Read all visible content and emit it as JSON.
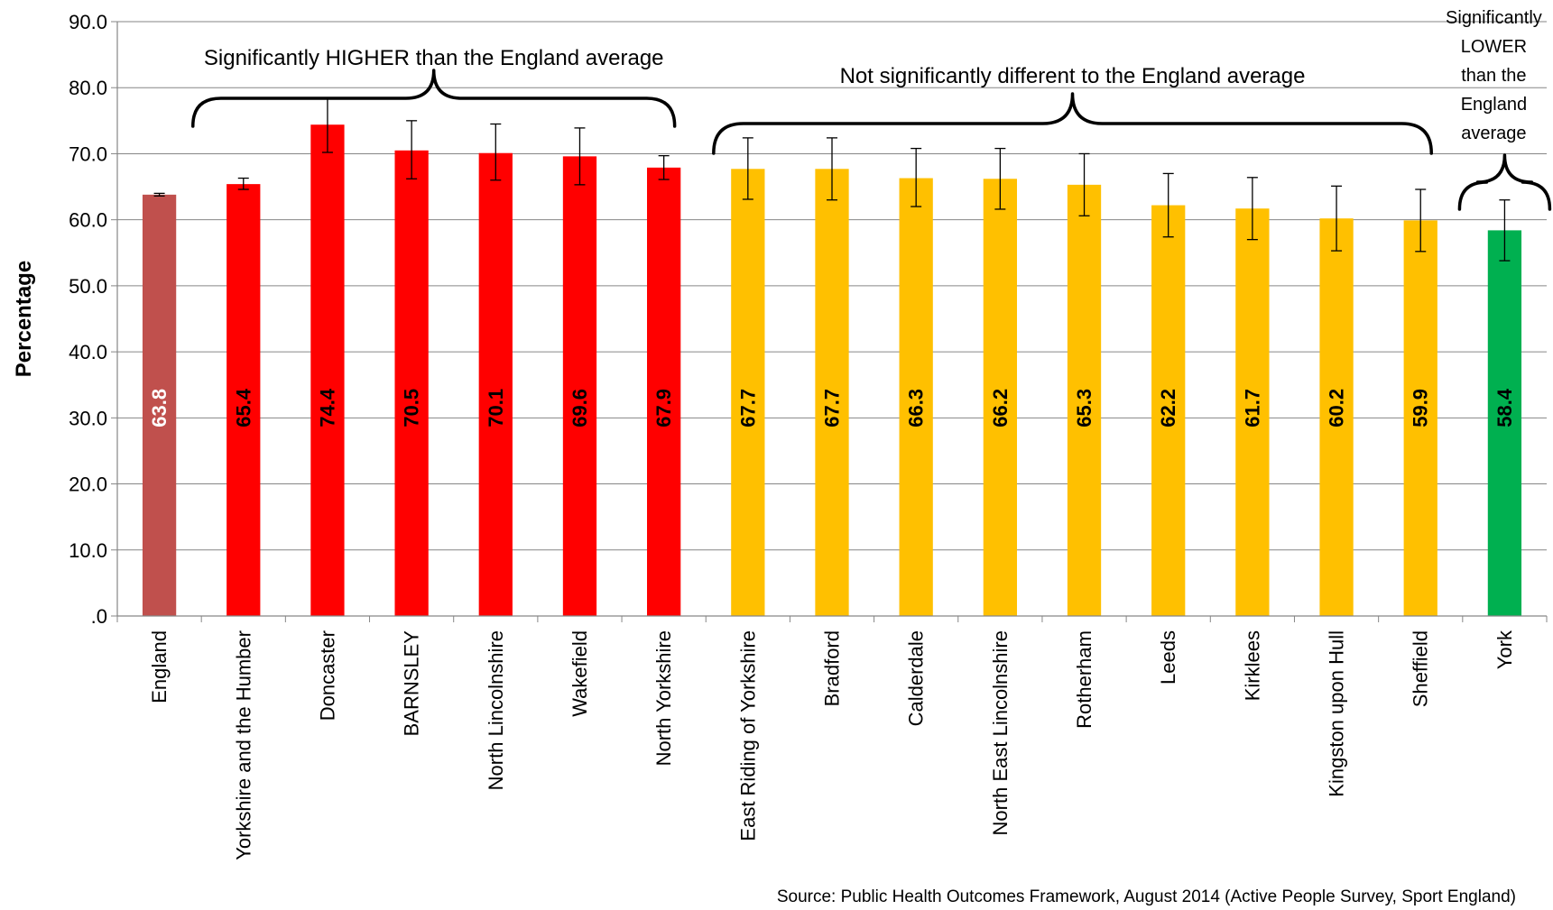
{
  "chart_data": {
    "type": "bar",
    "ylabel": "Percentage",
    "xlabel": "",
    "ylim": [
      0,
      90
    ],
    "yticks": [
      ".0",
      "10.0",
      "20.0",
      "30.0",
      "40.0",
      "50.0",
      "60.0",
      "70.0",
      "80.0",
      "90.0"
    ],
    "grid": true,
    "categories": [
      "England",
      "Yorkshire and the Humber",
      "Doncaster",
      "BARNSLEY",
      "North Lincolnshire",
      "Wakefield",
      "North Yorkshire",
      "East Riding of Yorkshire",
      "Bradford",
      "Calderdale",
      "North East Lincolnshire",
      "Rotherham",
      "Leeds",
      "Kirklees",
      "Kingston upon Hull",
      "Sheffield",
      "York"
    ],
    "values": [
      63.8,
      65.4,
      74.4,
      70.5,
      70.1,
      69.6,
      67.9,
      67.7,
      67.7,
      66.3,
      66.2,
      65.3,
      62.2,
      61.7,
      60.2,
      59.9,
      58.4
    ],
    "value_labels": [
      "63.8",
      "65.4",
      "74.4",
      "70.5",
      "70.1",
      "69.6",
      "67.9",
      "67.7",
      "67.7",
      "66.3",
      "66.2",
      "65.3",
      "62.2",
      "61.7",
      "60.2",
      "59.9",
      "58.4"
    ],
    "ci_lower": [
      63.6,
      64.6,
      70.2,
      66.2,
      66.0,
      65.3,
      66.1,
      63.1,
      63.0,
      62.0,
      61.6,
      60.6,
      57.4,
      57.0,
      55.3,
      55.2,
      53.8
    ],
    "ci_upper": [
      64.0,
      66.3,
      78.5,
      75.0,
      74.5,
      73.9,
      69.7,
      72.4,
      72.4,
      70.8,
      70.8,
      70.0,
      67.0,
      66.4,
      65.1,
      64.6,
      63.0
    ],
    "bar_colors": [
      "#c0504d",
      "#ff0000",
      "#ff0000",
      "#ff0000",
      "#ff0000",
      "#ff0000",
      "#ff0000",
      "#ffc000",
      "#ffc000",
      "#ffc000",
      "#ffc000",
      "#ffc000",
      "#ffc000",
      "#ffc000",
      "#ffc000",
      "#ffc000",
      "#00b050"
    ],
    "value_label_colors": [
      "#ffffff",
      "#000000",
      "#000000",
      "#000000",
      "#000000",
      "#000000",
      "#000000",
      "#000000",
      "#000000",
      "#000000",
      "#000000",
      "#000000",
      "#000000",
      "#000000",
      "#000000",
      "#000000",
      "#000000"
    ],
    "annotations": [
      {
        "text_lines": [
          "Significantly  HIGHER than the England average"
        ],
        "from_category": 1,
        "to_category": 6
      },
      {
        "text_lines": [
          "Not significantly different to the England average"
        ],
        "from_category": 7,
        "to_category": 15
      },
      {
        "text_lines": [
          "Significantly",
          "LOWER",
          "than the",
          "England",
          "average"
        ],
        "from_category": 16,
        "to_category": 16
      }
    ],
    "source": "Source: Public Health Outcomes Framework, August 2014 (Active People Survey, Sport England)"
  }
}
